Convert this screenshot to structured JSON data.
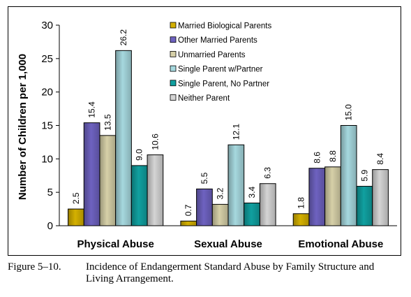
{
  "chart_data": {
    "type": "bar",
    "title": "",
    "xlabel": "",
    "ylabel": "Number of Children per 1,000",
    "ylim": [
      0,
      30
    ],
    "yticks": [
      0,
      5,
      10,
      15,
      20,
      25,
      30
    ],
    "grid": false,
    "legend_position": "top-center",
    "categories": [
      "Physical Abuse",
      "Sexual Abuse",
      "Emotional Abuse"
    ],
    "series": [
      {
        "name": "Married Biological Parents",
        "color": "#d4b000",
        "values": [
          2.5,
          0.7,
          1.8
        ]
      },
      {
        "name": "Other Married Parents",
        "color": "#6e62c0",
        "values": [
          15.4,
          5.5,
          8.6
        ]
      },
      {
        "name": "Unmarried Parents",
        "color": "#d6d0a8",
        "values": [
          13.5,
          3.2,
          8.8
        ]
      },
      {
        "name": "Single Parent w/Partner",
        "color": "#a6d8de",
        "values": [
          26.2,
          12.1,
          15.0
        ]
      },
      {
        "name": "Single Parent, No Partner",
        "color": "#10a0a0",
        "values": [
          9.0,
          3.4,
          5.9
        ]
      },
      {
        "name": "Neither Parent",
        "color": "#d4d4d4",
        "values": [
          10.6,
          6.3,
          8.4
        ]
      }
    ],
    "data_labels": [
      [
        "2.5",
        "0.7",
        "1.8"
      ],
      [
        "15.4",
        "5.5",
        "8.6"
      ],
      [
        "13.5",
        "3.2",
        "8.8"
      ],
      [
        "26.2",
        "12.1",
        "15.0"
      ],
      [
        "9.0",
        "3.4",
        "5.9"
      ],
      [
        "10.6",
        "6.3",
        "8.4"
      ]
    ]
  },
  "caption": {
    "number": "Figure 5–10.",
    "text": "Incidence of Endangerment Standard Abuse by Family Structure and Living Arrangement."
  }
}
